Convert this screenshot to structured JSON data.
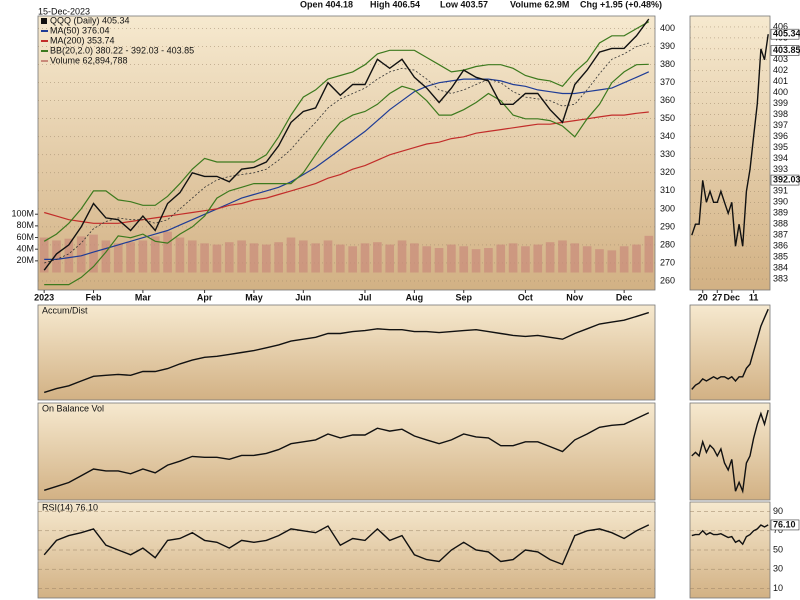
{
  "chart_data": [
    {
      "type": "line",
      "title": "QQQ (Daily) 405.34",
      "subtitle": "15-Dec-2023",
      "annotations": [
        "Open 404.18",
        "High 406.54",
        "Low 403.57",
        "Volume 62.9M",
        "Chg +1.95 (+0.48%)"
      ],
      "categories": [
        "2023",
        null,
        null,
        null,
        "Feb",
        null,
        null,
        null,
        "Mar",
        null,
        null,
        null,
        null,
        "Apr",
        null,
        null,
        null,
        "May",
        null,
        null,
        null,
        "Jun",
        null,
        null,
        null,
        null,
        "Jul",
        null,
        null,
        null,
        "Aug",
        null,
        null,
        null,
        "Sep",
        null,
        null,
        null,
        null,
        "Oct",
        null,
        null,
        null,
        "Nov",
        null,
        null,
        null,
        "Dec",
        null,
        null
      ],
      "ylim": [
        255,
        407
      ],
      "yticks": [
        260,
        270,
        280,
        290,
        300,
        310,
        320,
        330,
        340,
        350,
        360,
        370,
        380,
        390,
        400
      ],
      "y2lim": [
        -30,
        440
      ],
      "y2ticks": [
        {
          "value": 20,
          "label": "20M"
        },
        {
          "value": 40,
          "label": "40M"
        },
        {
          "value": 60,
          "label": "60M"
        },
        {
          "value": 80,
          "label": "80M"
        },
        {
          "value": 100,
          "label": "100M"
        }
      ],
      "series": [
        {
          "name": "MA(50) 376.04",
          "color": "#1f3c96",
          "values": [
            272,
            272,
            273,
            274,
            276,
            278,
            280,
            282,
            284,
            286,
            288,
            291,
            294,
            297,
            300,
            303,
            306,
            308,
            310,
            312,
            315,
            319,
            323,
            328,
            333,
            338,
            343,
            349,
            355,
            360,
            365,
            368,
            370,
            371,
            372,
            372,
            372,
            371,
            369,
            368,
            366,
            365,
            364,
            364,
            365,
            366,
            367,
            370,
            373,
            376.04
          ]
        },
        {
          "name": "MA(200) 353.74",
          "color": "#c22d2a",
          "values": [
            298,
            296,
            294,
            293,
            292,
            292,
            292,
            293,
            294,
            295,
            296,
            297,
            298,
            299,
            300,
            302,
            303,
            305,
            306,
            308,
            310,
            312,
            314,
            317,
            319,
            322,
            324,
            327,
            330,
            332,
            334,
            336,
            337,
            339,
            340,
            342,
            343,
            344,
            345,
            346,
            347,
            347,
            348,
            349,
            350,
            351,
            352,
            352,
            353,
            353.74
          ]
        },
        {
          "name": "BB(20,2.0) 380.22 - 392.03 - 403.85",
          "color": "#3d7a1e",
          "values": [
            270,
            272,
            275,
            281,
            289,
            293,
            295,
            294,
            294,
            292,
            294,
            300,
            306,
            312,
            316,
            318,
            319,
            320,
            322,
            327,
            333,
            341,
            348,
            356,
            361,
            364,
            367,
            372,
            376,
            378,
            377,
            372,
            366,
            364,
            366,
            369,
            372,
            370,
            365,
            362,
            361,
            360,
            357,
            358,
            366,
            375,
            383,
            386,
            390,
            392.03
          ],
          "upper": [
            282,
            286,
            292,
            300,
            310,
            310,
            305,
            304,
            302,
            302,
            307,
            314,
            322,
            328,
            326,
            326,
            326,
            326,
            330,
            340,
            352,
            362,
            366,
            372,
            374,
            376,
            380,
            386,
            388,
            388,
            388,
            384,
            380,
            376,
            377,
            379,
            380,
            380,
            378,
            374,
            372,
            371,
            368,
            376,
            382,
            392,
            396,
            396,
            400,
            403.85
          ],
          "lower": [
            258,
            258,
            258,
            262,
            268,
            276,
            285,
            284,
            286,
            282,
            281,
            286,
            290,
            296,
            306,
            310,
            312,
            314,
            314,
            314,
            314,
            320,
            330,
            340,
            348,
            352,
            354,
            358,
            364,
            368,
            366,
            360,
            352,
            352,
            355,
            359,
            364,
            360,
            352,
            350,
            350,
            349,
            346,
            340,
            350,
            358,
            370,
            376,
            380,
            380.22
          ]
        },
        {
          "name": "Volume 62,894,788",
          "color": "#c98a7a",
          "axis": "y2",
          "type": "bar",
          "values": [
            60,
            55,
            58,
            62,
            65,
            55,
            50,
            52,
            55,
            62,
            70,
            60,
            55,
            50,
            48,
            52,
            55,
            50,
            48,
            52,
            60,
            55,
            50,
            55,
            48,
            45,
            50,
            52,
            48,
            55,
            50,
            45,
            42,
            48,
            45,
            40,
            42,
            48,
            50,
            45,
            48,
            52,
            55,
            50,
            45,
            40,
            38,
            45,
            48,
            62.894788
          ]
        },
        {
          "name": "QQQ",
          "color": "#111111",
          "values": [
            266,
            275,
            280,
            290,
            303,
            295,
            294,
            288,
            296,
            288,
            303,
            309,
            320,
            318,
            318,
            315,
            322,
            323,
            326,
            335,
            348,
            354,
            356,
            370,
            363,
            369,
            369,
            383,
            378,
            383,
            373,
            367,
            359,
            367,
            377,
            373,
            371,
            358,
            358,
            364,
            364,
            355,
            348,
            369,
            377,
            387,
            389,
            389,
            396,
            405.34
          ]
        }
      ]
    },
    {
      "type": "line",
      "title": "Accum/Dist",
      "color": "#111111",
      "ylim": [
        0,
        100
      ],
      "values": [
        8,
        12,
        15,
        20,
        25,
        26,
        27,
        26,
        30,
        30,
        33,
        38,
        42,
        45,
        46,
        48,
        50,
        52,
        55,
        58,
        62,
        64,
        66,
        70,
        70,
        72,
        73,
        75,
        74,
        74,
        72,
        72,
        71,
        72,
        73,
        74,
        72,
        70,
        68,
        67,
        68,
        66,
        64,
        70,
        75,
        80,
        82,
        84,
        88,
        92
      ]
    },
    {
      "type": "line",
      "title": "On Balance Vol",
      "color": "#111111",
      "ylim": [
        0,
        100
      ],
      "values": [
        10,
        14,
        18,
        25,
        32,
        30,
        30,
        27,
        32,
        28,
        36,
        40,
        45,
        44,
        44,
        42,
        46,
        46,
        48,
        52,
        58,
        60,
        62,
        68,
        64,
        67,
        67,
        74,
        71,
        73,
        66,
        62,
        58,
        62,
        68,
        65,
        64,
        56,
        56,
        60,
        60,
        55,
        50,
        62,
        68,
        75,
        77,
        78,
        84,
        90
      ]
    },
    {
      "type": "line",
      "title": "RSI(14) 76.10",
      "color": "#111111",
      "ylim": [
        0,
        100
      ],
      "yticks": [
        10,
        30,
        50,
        70,
        90
      ],
      "values": [
        45,
        60,
        65,
        68,
        72,
        55,
        50,
        45,
        52,
        42,
        60,
        62,
        68,
        60,
        58,
        52,
        60,
        58,
        60,
        65,
        72,
        70,
        68,
        75,
        55,
        62,
        60,
        72,
        60,
        65,
        45,
        40,
        38,
        50,
        58,
        50,
        48,
        38,
        40,
        50,
        48,
        40,
        35,
        65,
        70,
        72,
        68,
        62,
        70,
        76.1
      ]
    },
    {
      "type": "line",
      "color": "#111111",
      "categories": [
        null,
        null,
        null,
        "20",
        null,
        null,
        null,
        "27",
        null,
        null,
        null,
        "Dec",
        null,
        null,
        null,
        null,
        null,
        "11",
        null,
        null,
        null,
        null
      ],
      "ylim": [
        382,
        407
      ],
      "yticks": [
        383,
        384,
        385,
        386,
        387,
        388,
        389,
        390,
        391,
        392,
        393,
        394,
        395,
        396,
        397,
        398,
        399,
        400,
        401,
        402,
        403,
        404,
        405,
        406
      ],
      "values": [
        387,
        388,
        388,
        392,
        390,
        391,
        390,
        390,
        391,
        390,
        389,
        390,
        386,
        388,
        386,
        391,
        393,
        396,
        399,
        404,
        403,
        405.34
      ],
      "markers": [
        {
          "value": 405.34,
          "label": "405.34"
        },
        {
          "value": 403.85,
          "label": "403.85"
        },
        {
          "value": 392.03,
          "label": "392.03"
        }
      ]
    },
    {
      "type": "line",
      "color": "#111111",
      "ylim": [
        55,
        100
      ],
      "values": [
        60,
        62,
        63,
        65,
        64,
        65,
        66,
        65,
        66,
        66,
        65,
        66,
        64,
        66,
        66,
        70,
        72,
        78,
        84,
        90,
        94,
        98
      ]
    },
    {
      "type": "line",
      "color": "#111111",
      "ylim": [
        45,
        100
      ],
      "values": [
        70,
        72,
        70,
        78,
        72,
        76,
        74,
        70,
        74,
        66,
        62,
        68,
        50,
        55,
        50,
        66,
        70,
        80,
        88,
        94,
        88,
        96
      ]
    },
    {
      "type": "line",
      "color": "#111111",
      "ylim": [
        0,
        100
      ],
      "values": [
        65,
        66,
        66,
        70,
        66,
        68,
        66,
        66,
        67,
        65,
        63,
        64,
        58,
        60,
        56,
        64,
        66,
        70,
        72,
        76,
        74,
        76.1
      ],
      "markers": [
        {
          "value": 76.1,
          "label": "76.10"
        }
      ]
    }
  ]
}
